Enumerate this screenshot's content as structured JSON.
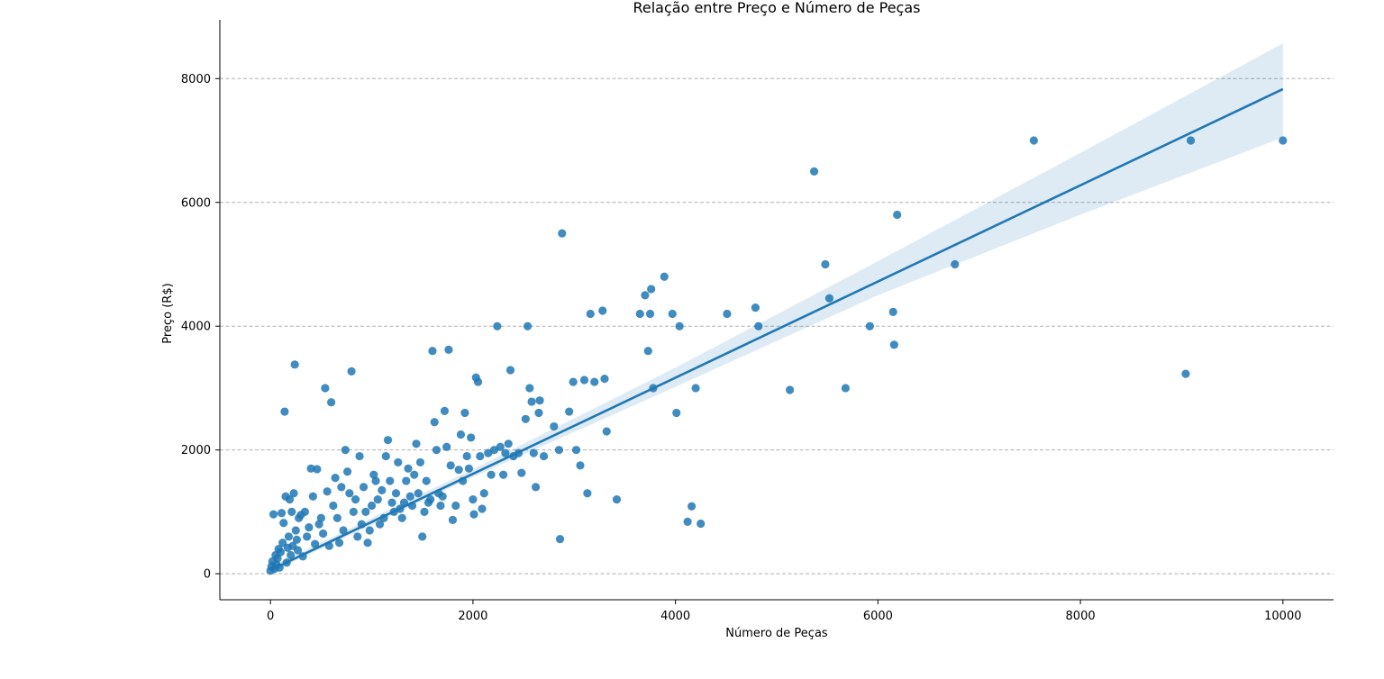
{
  "chart_data": {
    "type": "scatter",
    "title": "Relação entre Preço e Número de Peças",
    "xlabel": "Número de Peças",
    "ylabel": "Preço (R$)",
    "xlim": [
      -500,
      10500
    ],
    "ylim": [
      -420,
      8950
    ],
    "xticks": [
      0,
      2000,
      4000,
      6000,
      8000,
      10000
    ],
    "yticks": [
      0,
      2000,
      4000,
      6000,
      8000
    ],
    "grid": "horizontal dashed",
    "point_color": "#1f77b4",
    "line_color": "#1f77b4",
    "band_color": "#1f77b4",
    "series": [
      {
        "type": "scatter",
        "points": [
          [
            0,
            50
          ],
          [
            10,
            120
          ],
          [
            20,
            200
          ],
          [
            30,
            960
          ],
          [
            40,
            80
          ],
          [
            50,
            300
          ],
          [
            60,
            150
          ],
          [
            70,
            250
          ],
          [
            80,
            400
          ],
          [
            90,
            100
          ],
          [
            100,
            350
          ],
          [
            110,
            980
          ],
          [
            120,
            500
          ],
          [
            130,
            820
          ],
          [
            140,
            2620
          ],
          [
            150,
            1250
          ],
          [
            160,
            180
          ],
          [
            170,
            420
          ],
          [
            180,
            600
          ],
          [
            190,
            1200
          ],
          [
            200,
            300
          ],
          [
            210,
            1000
          ],
          [
            220,
            450
          ],
          [
            230,
            1300
          ],
          [
            240,
            3380
          ],
          [
            250,
            700
          ],
          [
            260,
            550
          ],
          [
            270,
            380
          ],
          [
            280,
            900
          ],
          [
            300,
            950
          ],
          [
            320,
            280
          ],
          [
            340,
            1000
          ],
          [
            360,
            600
          ],
          [
            380,
            750
          ],
          [
            400,
            1700
          ],
          [
            420,
            1250
          ],
          [
            440,
            480
          ],
          [
            460,
            1690
          ],
          [
            480,
            800
          ],
          [
            500,
            900
          ],
          [
            520,
            650
          ],
          [
            540,
            3000
          ],
          [
            560,
            1330
          ],
          [
            580,
            450
          ],
          [
            600,
            2770
          ],
          [
            620,
            1100
          ],
          [
            640,
            1550
          ],
          [
            660,
            900
          ],
          [
            680,
            500
          ],
          [
            700,
            1400
          ],
          [
            720,
            700
          ],
          [
            740,
            2000
          ],
          [
            760,
            1650
          ],
          [
            780,
            1300
          ],
          [
            800,
            3270
          ],
          [
            820,
            1000
          ],
          [
            840,
            1200
          ],
          [
            860,
            600
          ],
          [
            880,
            1900
          ],
          [
            900,
            800
          ],
          [
            920,
            1400
          ],
          [
            940,
            1000
          ],
          [
            960,
            500
          ],
          [
            980,
            700
          ],
          [
            1000,
            1100
          ],
          [
            1020,
            1600
          ],
          [
            1040,
            1500
          ],
          [
            1060,
            1200
          ],
          [
            1080,
            800
          ],
          [
            1100,
            1350
          ],
          [
            1120,
            900
          ],
          [
            1140,
            1900
          ],
          [
            1160,
            2160
          ],
          [
            1180,
            1500
          ],
          [
            1200,
            1150
          ],
          [
            1220,
            1000
          ],
          [
            1240,
            1300
          ],
          [
            1260,
            1800
          ],
          [
            1280,
            1050
          ],
          [
            1300,
            900
          ],
          [
            1320,
            1150
          ],
          [
            1340,
            1500
          ],
          [
            1360,
            1700
          ],
          [
            1380,
            1250
          ],
          [
            1400,
            1100
          ],
          [
            1420,
            1600
          ],
          [
            1440,
            2100
          ],
          [
            1460,
            1300
          ],
          [
            1480,
            1800
          ],
          [
            1500,
            600
          ],
          [
            1520,
            1000
          ],
          [
            1540,
            1500
          ],
          [
            1560,
            1150
          ],
          [
            1580,
            1200
          ],
          [
            1600,
            3600
          ],
          [
            1620,
            2450
          ],
          [
            1640,
            2000
          ],
          [
            1660,
            1300
          ],
          [
            1680,
            1100
          ],
          [
            1700,
            1250
          ],
          [
            1720,
            2630
          ],
          [
            1740,
            2050
          ],
          [
            1760,
            3620
          ],
          [
            1780,
            1750
          ],
          [
            1800,
            870
          ],
          [
            1830,
            1100
          ],
          [
            1860,
            1680
          ],
          [
            1880,
            2250
          ],
          [
            1900,
            1500
          ],
          [
            1920,
            2600
          ],
          [
            1940,
            1900
          ],
          [
            1960,
            1700
          ],
          [
            1980,
            2200
          ],
          [
            2000,
            1200
          ],
          [
            2010,
            960
          ],
          [
            2030,
            3170
          ],
          [
            2050,
            3100
          ],
          [
            2070,
            1900
          ],
          [
            2090,
            1050
          ],
          [
            2110,
            1300
          ],
          [
            2150,
            1950
          ],
          [
            2180,
            1600
          ],
          [
            2210,
            2000
          ],
          [
            2240,
            4000
          ],
          [
            2270,
            2050
          ],
          [
            2300,
            1600
          ],
          [
            2320,
            1950
          ],
          [
            2350,
            2100
          ],
          [
            2370,
            3290
          ],
          [
            2400,
            1900
          ],
          [
            2450,
            1950
          ],
          [
            2480,
            1630
          ],
          [
            2520,
            2500
          ],
          [
            2540,
            4000
          ],
          [
            2560,
            3000
          ],
          [
            2580,
            2780
          ],
          [
            2600,
            1950
          ],
          [
            2620,
            1400
          ],
          [
            2650,
            2600
          ],
          [
            2660,
            2800
          ],
          [
            2700,
            1900
          ],
          [
            2800,
            2380
          ],
          [
            2850,
            2000
          ],
          [
            2880,
            5500
          ],
          [
            2860,
            560
          ],
          [
            2950,
            2620
          ],
          [
            2990,
            3100
          ],
          [
            3020,
            2000
          ],
          [
            3060,
            1750
          ],
          [
            3100,
            3130
          ],
          [
            3130,
            1300
          ],
          [
            3160,
            4200
          ],
          [
            3200,
            3100
          ],
          [
            3280,
            4250
          ],
          [
            3300,
            3150
          ],
          [
            3320,
            2300
          ],
          [
            3420,
            1200
          ],
          [
            3650,
            4200
          ],
          [
            3700,
            4500
          ],
          [
            3730,
            3600
          ],
          [
            3750,
            4200
          ],
          [
            3760,
            4600
          ],
          [
            3780,
            3000
          ],
          [
            3890,
            4800
          ],
          [
            3970,
            4200
          ],
          [
            4010,
            2600
          ],
          [
            4040,
            4000
          ],
          [
            4120,
            840
          ],
          [
            4160,
            1090
          ],
          [
            4200,
            3000
          ],
          [
            4250,
            810
          ],
          [
            4510,
            4200
          ],
          [
            4790,
            4300
          ],
          [
            4820,
            4000
          ],
          [
            5130,
            2970
          ],
          [
            5370,
            6500
          ],
          [
            5480,
            5000
          ],
          [
            5520,
            4450
          ],
          [
            5680,
            3000
          ],
          [
            5920,
            4000
          ],
          [
            6150,
            4230
          ],
          [
            6160,
            3700
          ],
          [
            6190,
            5800
          ],
          [
            6760,
            5000
          ],
          [
            7540,
            7000
          ],
          [
            9040,
            3230
          ],
          [
            9090,
            7000
          ],
          [
            10000,
            7000
          ]
        ]
      },
      {
        "type": "regression_line",
        "x": [
          0,
          10000
        ],
        "y": [
          60,
          7830
        ]
      },
      {
        "type": "confidence_band",
        "x": [
          0,
          2000,
          4000,
          6000,
          8000,
          10000
        ],
        "upper": [
          110,
          1690,
          3330,
          5050,
          6800,
          8570
        ],
        "lower": [
          20,
          1560,
          3020,
          4500,
          5800,
          7050
        ]
      }
    ]
  }
}
